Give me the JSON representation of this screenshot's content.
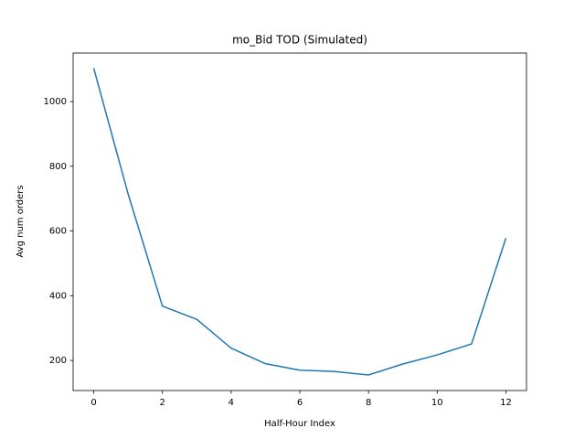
{
  "chart_data": {
    "type": "line",
    "title": "mo_Bid TOD (Simulated)",
    "x_label": "Half-Hour Index",
    "y_label": "Avg num orders",
    "x": [
      0,
      1,
      2,
      3,
      4,
      5,
      6,
      7,
      8,
      9,
      10,
      11,
      12
    ],
    "series": [
      {
        "name": "mo_Bid",
        "color": "#1f77b4",
        "values": [
          1103,
          715,
          368,
          327,
          238,
          190,
          170,
          166,
          155,
          189,
          217,
          251,
          578
        ]
      }
    ],
    "xlim": [
      -0.6,
      12.6
    ],
    "xticks": [
      0,
      2,
      4,
      6,
      8,
      10,
      12
    ],
    "ylim": [
      107,
      1150
    ],
    "yticks": [
      200,
      400,
      600,
      800,
      1000
    ]
  }
}
